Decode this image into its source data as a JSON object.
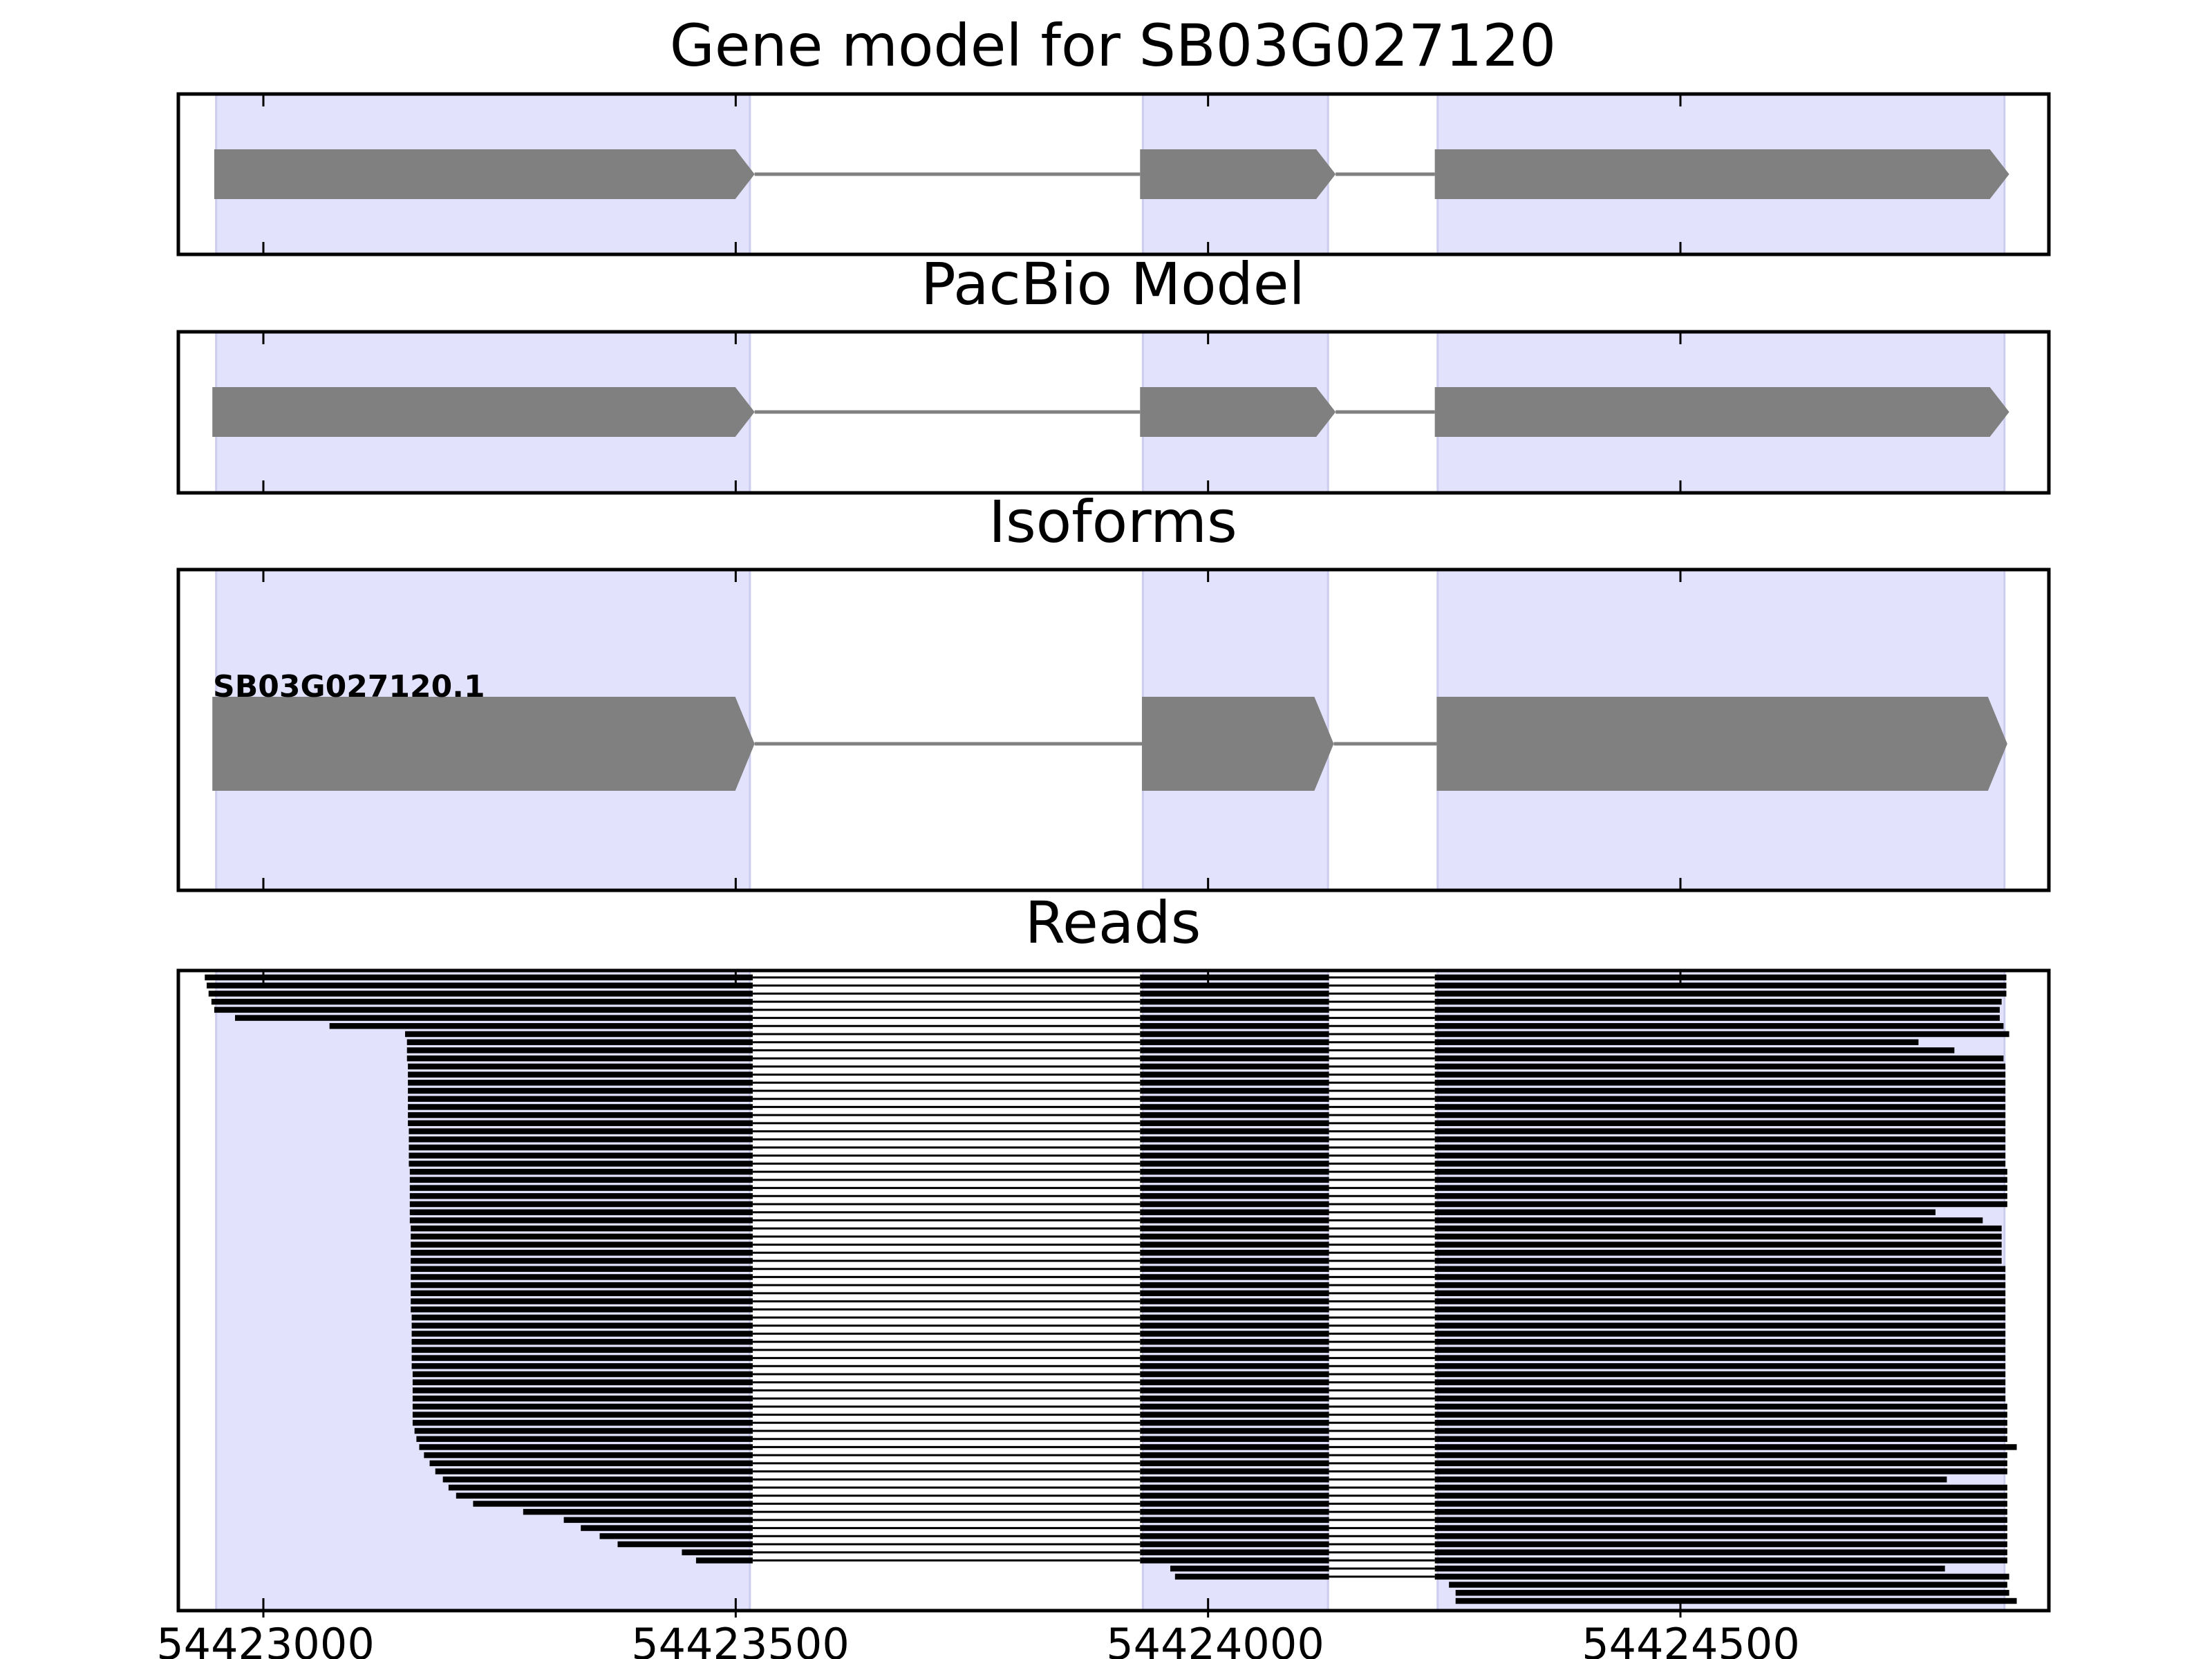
{
  "chart_data": {
    "type": "gene-track",
    "x_ticks": [
      54423000,
      54423500,
      54424000,
      54424500
    ],
    "x_tick_labels": [
      "54423000",
      "54423500",
      "54424000",
      "54424500"
    ],
    "xlim": [
      54422910,
      54424890
    ],
    "exon_shading_color": "#e2e2fc",
    "exon_shading_border": "#ccccee",
    "feature_color": "#808080",
    "read_color": "#000000",
    "exon_regions": [
      [
        54422950,
        54423515
      ],
      [
        54423931,
        54424127
      ],
      [
        54424243,
        54424843
      ]
    ],
    "panels": [
      {
        "title": "Gene model for SB03G027120",
        "isoform_label": "",
        "exons": [
          [
            54422948,
            54423520
          ],
          [
            54423928,
            54424135
          ],
          [
            54424240,
            54424848
          ]
        ]
      },
      {
        "title": "PacBio Model",
        "isoform_label": "",
        "exons": [
          [
            54422946,
            54423520
          ],
          [
            54423928,
            54424135
          ],
          [
            54424240,
            54424848
          ]
        ]
      },
      {
        "title": "Isoforms",
        "isoform_label": "SB03G027120.1",
        "exons": [
          [
            54422946,
            54423520
          ],
          [
            54423930,
            54424133
          ],
          [
            54424242,
            54424846
          ]
        ]
      }
    ],
    "reads_panel": {
      "title": "Reads",
      "exon2": [
        54423928,
        54424128
      ],
      "exon3": [
        54424240
      ],
      "reads": [
        [
          54422938,
          54423518,
          null,
          54424845
        ],
        [
          54422940,
          54423518,
          null,
          54424845
        ],
        [
          54422942,
          54423518,
          null,
          54424845
        ],
        [
          54422945,
          54423518,
          null,
          54424840
        ],
        [
          54422948,
          54423518,
          null,
          54424838
        ],
        [
          54422970,
          54423518,
          null,
          54424838
        ],
        [
          54423070,
          54423518,
          null,
          54424842
        ],
        [
          54423150,
          54423518,
          null,
          54424848
        ],
        [
          54423152,
          54423518,
          null,
          54424752
        ],
        [
          54423152,
          54423518,
          null,
          54424790
        ],
        [
          54423152,
          54423518,
          null,
          54424842
        ],
        [
          54423153,
          54423518,
          null,
          54424844
        ],
        [
          54423153,
          54423518,
          null,
          54424844
        ],
        [
          54423153,
          54423518,
          null,
          54424844
        ],
        [
          54423153,
          54423518,
          null,
          54424844
        ],
        [
          54423153,
          54423518,
          null,
          54424844
        ],
        [
          54423153,
          54423518,
          null,
          54424844
        ],
        [
          54423153,
          54423518,
          null,
          54424844
        ],
        [
          54423153,
          54423518,
          null,
          54424844
        ],
        [
          54423154,
          54423518,
          null,
          54424844
        ],
        [
          54423154,
          54423518,
          null,
          54424844
        ],
        [
          54423154,
          54423518,
          null,
          54424844
        ],
        [
          54423154,
          54423518,
          null,
          54424844
        ],
        [
          54423154,
          54423518,
          null,
          54424844
        ],
        [
          54423155,
          54423518,
          null,
          54424846
        ],
        [
          54423155,
          54423518,
          null,
          54424846
        ],
        [
          54423155,
          54423518,
          null,
          54424846
        ],
        [
          54423155,
          54423518,
          null,
          54424846
        ],
        [
          54423155,
          54423518,
          null,
          54424846
        ],
        [
          54423155,
          54423518,
          null,
          54424770
        ],
        [
          54423155,
          54423518,
          null,
          54424820
        ],
        [
          54423156,
          54423518,
          null,
          54424840
        ],
        [
          54423156,
          54423518,
          null,
          54424840
        ],
        [
          54423156,
          54423518,
          null,
          54424840
        ],
        [
          54423156,
          54423518,
          null,
          54424840
        ],
        [
          54423156,
          54423518,
          null,
          54424840
        ],
        [
          54423156,
          54423518,
          null,
          54424844
        ],
        [
          54423156,
          54423518,
          null,
          54424844
        ],
        [
          54423156,
          54423518,
          null,
          54424844
        ],
        [
          54423156,
          54423518,
          null,
          54424844
        ],
        [
          54423156,
          54423518,
          null,
          54424844
        ],
        [
          54423156,
          54423518,
          null,
          54424844
        ],
        [
          54423157,
          54423518,
          null,
          54424844
        ],
        [
          54423157,
          54423518,
          null,
          54424844
        ],
        [
          54423157,
          54423518,
          null,
          54424844
        ],
        [
          54423157,
          54423518,
          null,
          54424844
        ],
        [
          54423157,
          54423518,
          null,
          54424844
        ],
        [
          54423157,
          54423518,
          null,
          54424844
        ],
        [
          54423157,
          54423518,
          null,
          54424844
        ],
        [
          54423158,
          54423518,
          null,
          54424844
        ],
        [
          54423158,
          54423518,
          null,
          54424844
        ],
        [
          54423158,
          54423518,
          null,
          54424844
        ],
        [
          54423158,
          54423518,
          null,
          54424844
        ],
        [
          54423158,
          54423518,
          null,
          54424846
        ],
        [
          54423158,
          54423518,
          null,
          54424846
        ],
        [
          54423158,
          54423518,
          null,
          54424846
        ],
        [
          54423160,
          54423518,
          null,
          54424846
        ],
        [
          54423162,
          54423518,
          null,
          54424846
        ],
        [
          54423165,
          54423518,
          null,
          54424856
        ],
        [
          54423170,
          54423518,
          null,
          54424846
        ],
        [
          54423176,
          54423518,
          null,
          54424846
        ],
        [
          54423182,
          54423518,
          null,
          54424846
        ],
        [
          54423190,
          54423518,
          null,
          54424782
        ],
        [
          54423196,
          54423518,
          null,
          54424846
        ],
        [
          54423204,
          54423518,
          null,
          54424846
        ],
        [
          54423222,
          54423518,
          null,
          54424846
        ],
        [
          54423275,
          54423518,
          null,
          54424846
        ],
        [
          54423318,
          54423518,
          null,
          54424846
        ],
        [
          54423336,
          54423518,
          null,
          54424846
        ],
        [
          54423356,
          54423518,
          null,
          54424846
        ],
        [
          54423375,
          54423518,
          null,
          54424846
        ],
        [
          54423443,
          54423518,
          null,
          54424846
        ],
        [
          54423458,
          54423518,
          null,
          54424846
        ],
        [
          null,
          null,
          54423960,
          54424780
        ],
        [
          null,
          null,
          54423965,
          54424848
        ],
        [
          null,
          null,
          54424255,
          54424846
        ],
        [
          null,
          null,
          54424262,
          54424848
        ],
        [
          null,
          null,
          54424262,
          54424856
        ]
      ]
    }
  }
}
